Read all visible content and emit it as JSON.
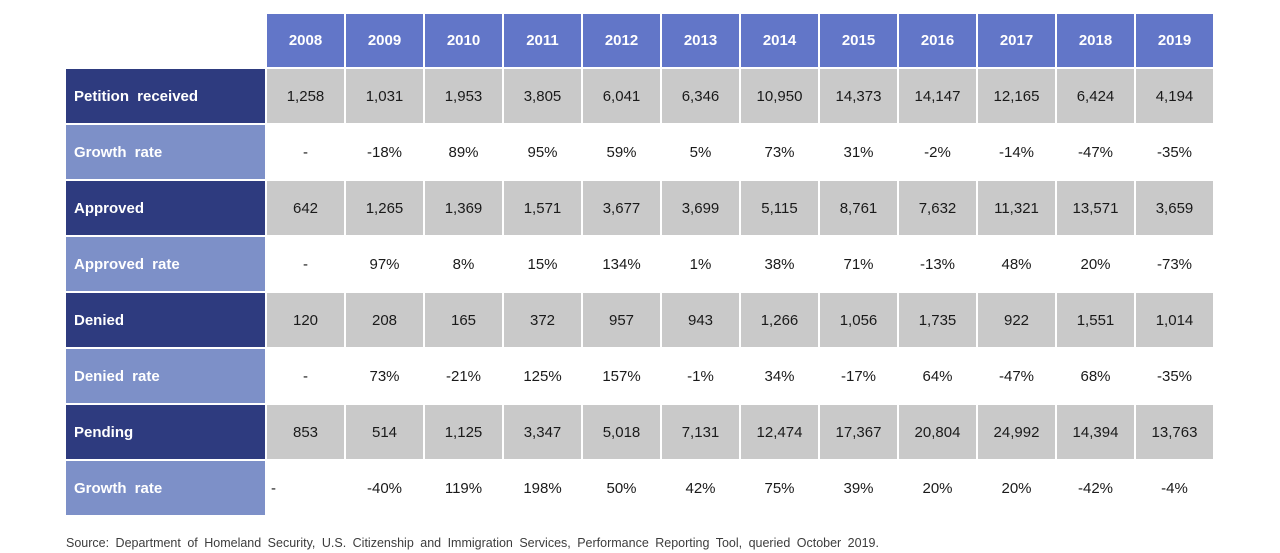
{
  "chart_data": {
    "type": "table",
    "columns": [
      "2008",
      "2009",
      "2010",
      "2011",
      "2012",
      "2013",
      "2014",
      "2015",
      "2016",
      "2017",
      "2018",
      "2019"
    ],
    "rows": [
      {
        "label": "Petition received",
        "band": "dark",
        "values": [
          "1,258",
          "1,031",
          "1,953",
          "3,805",
          "6,041",
          "6,346",
          "10,950",
          "14,373",
          "14,147",
          "12,165",
          "6,424",
          "4,194"
        ]
      },
      {
        "label": "Growth rate",
        "band": "light",
        "values": [
          "-",
          "-18%",
          "89%",
          "95%",
          "59%",
          "5%",
          "73%",
          "31%",
          "-2%",
          "-14%",
          "-47%",
          "-35%"
        ]
      },
      {
        "label": "Approved",
        "band": "dark",
        "values": [
          "642",
          "1,265",
          "1,369",
          "1,571",
          "3,677",
          "3,699",
          "5,115",
          "8,761",
          "7,632",
          "11,321",
          "13,571",
          "3,659"
        ]
      },
      {
        "label": "Approved rate",
        "band": "light",
        "values": [
          "-",
          "97%",
          "8%",
          "15%",
          "134%",
          "1%",
          "38%",
          "71%",
          "-13%",
          "48%",
          "20%",
          "-73%"
        ]
      },
      {
        "label": "Denied",
        "band": "dark",
        "values": [
          "120",
          "208",
          "165",
          "372",
          "957",
          "943",
          "1,266",
          "1,056",
          "1,735",
          "922",
          "1,551",
          "1,014"
        ]
      },
      {
        "label": "Denied rate",
        "band": "light",
        "values": [
          "-",
          "73%",
          "-21%",
          "125%",
          "157%",
          "-1%",
          "34%",
          "-17%",
          "64%",
          "-47%",
          "68%",
          "-35%"
        ]
      },
      {
        "label": "Pending",
        "band": "dark",
        "values": [
          "853",
          "514",
          "1,125",
          "3,347",
          "5,018",
          "7,131",
          "12,474",
          "17,367",
          "20,804",
          "24,992",
          "14,394",
          "13,763"
        ]
      },
      {
        "label": "Growth rate",
        "band": "light",
        "values": [
          "-",
          "-40%",
          "119%",
          "198%",
          "50%",
          "42%",
          "75%",
          "39%",
          "20%",
          "20%",
          "-42%",
          "-4%"
        ]
      }
    ]
  },
  "footer": {
    "source": "Source: Department of Homeland Security, U.S. Citizenship and Immigration Services, Performance Reporting Tool, queried October 2019."
  },
  "colors": {
    "header_blue": "#6276c8",
    "dark_navy": "#2e3b7f",
    "light_blue": "#7d90c8",
    "cell_grey": "#c9c9c9",
    "text_dark": "#1a1a1a",
    "text_light": "#ffffff"
  }
}
